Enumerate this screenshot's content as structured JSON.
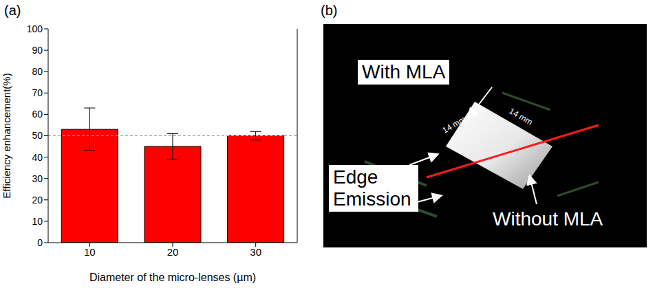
{
  "chart_data": {
    "type": "bar",
    "title": "(a)",
    "x_label": "Diameter of the micro-lenses (µm)",
    "y_label": "Efficiency enhancement(%)",
    "categories": [
      "10",
      "20",
      "30"
    ],
    "values": [
      53,
      45,
      50
    ],
    "errors": [
      10,
      6,
      2
    ],
    "color": "#ff0000",
    "ylim": [
      0,
      100
    ],
    "yticks": [
      0,
      10,
      20,
      30,
      40,
      50,
      60,
      70,
      80,
      90,
      100
    ],
    "reference_line": 50
  },
  "image_panel": {
    "label": "(b)",
    "top_label": "With MLA",
    "side_labels": [
      "14 mm",
      "14 mm"
    ],
    "edge_label": "Edge Emission",
    "bottom_label": "Without MLA"
  }
}
